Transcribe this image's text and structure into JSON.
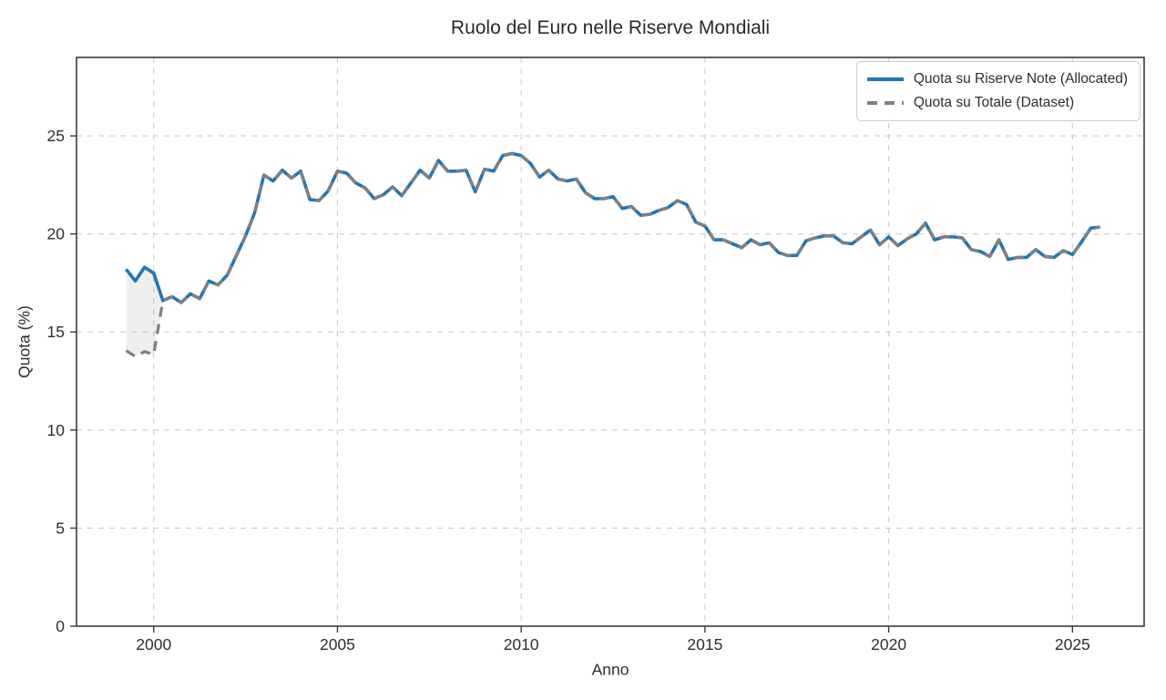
{
  "figure": {
    "title": "Ruolo del Euro nelle Riserve Mondiali"
  },
  "chart_data": {
    "type": "line",
    "title": "Ruolo del Euro nelle Riserve Mondiali",
    "xlabel": "Anno",
    "ylabel": "Quota (%)",
    "xlim": [
      1997.9,
      2026.95
    ],
    "ylim": [
      0,
      29
    ],
    "x_ticks": [
      2000,
      2005,
      2010,
      2015,
      2020,
      2025
    ],
    "y_ticks": [
      0,
      5,
      10,
      15,
      20,
      25
    ],
    "grid": true,
    "grid_color": "#cdcdcd",
    "spine_color": "#3b3b3b",
    "legend_position": "upper right",
    "x_start": 1999.25,
    "x_step": 0.25,
    "x_unit": "decimal year, quarterly (quarter-end)",
    "series": [
      {
        "name": "Quota su Riserve Note (Allocated)",
        "color": "#1f77b4",
        "style": "solid",
        "line_width": 3.6,
        "values": [
          18.2,
          17.6,
          18.3,
          18.0,
          16.6,
          16.8,
          16.5,
          16.95,
          16.7,
          17.6,
          17.4,
          17.9,
          18.9,
          19.9,
          21.1,
          23.0,
          22.7,
          23.25,
          22.85,
          23.2,
          21.75,
          21.7,
          22.2,
          23.2,
          23.1,
          22.6,
          22.35,
          21.8,
          22.0,
          22.4,
          21.95,
          22.6,
          23.25,
          22.85,
          23.75,
          23.2,
          23.2,
          23.25,
          22.15,
          23.3,
          23.2,
          24.0,
          24.1,
          24.0,
          23.6,
          22.9,
          23.25,
          22.8,
          22.7,
          22.8,
          22.1,
          21.8,
          21.8,
          21.9,
          21.3,
          21.4,
          20.95,
          21.0,
          21.2,
          21.35,
          21.7,
          21.5,
          20.6,
          20.4,
          19.7,
          19.7,
          19.5,
          19.3,
          19.7,
          19.45,
          19.55,
          19.05,
          18.9,
          18.9,
          19.65,
          19.8,
          19.9,
          19.9,
          19.55,
          19.5,
          19.85,
          20.2,
          19.45,
          19.85,
          19.4,
          19.75,
          20.0,
          20.55,
          19.7,
          19.85,
          19.85,
          19.8,
          19.2,
          19.1,
          18.85,
          19.7,
          18.7,
          18.8,
          18.8,
          19.2,
          18.85,
          18.8,
          19.15,
          18.95,
          19.6,
          20.3,
          20.35
        ]
      },
      {
        "name": "Quota su Totale (Dataset)",
        "color": "#808080",
        "style": "dashed",
        "line_width": 3.2,
        "values": [
          14.05,
          13.75,
          14.0,
          13.85,
          16.6,
          16.8,
          16.5,
          16.95,
          16.7,
          17.6,
          17.4,
          17.9,
          18.9,
          19.9,
          21.1,
          23.0,
          22.7,
          23.25,
          22.85,
          23.2,
          21.75,
          21.7,
          22.2,
          23.2,
          23.1,
          22.6,
          22.35,
          21.8,
          22.0,
          22.4,
          21.95,
          22.6,
          23.25,
          22.85,
          23.75,
          23.2,
          23.2,
          23.25,
          22.15,
          23.3,
          23.2,
          24.0,
          24.1,
          24.0,
          23.6,
          22.9,
          23.25,
          22.8,
          22.7,
          22.8,
          22.1,
          21.8,
          21.8,
          21.9,
          21.3,
          21.4,
          20.95,
          21.0,
          21.2,
          21.35,
          21.7,
          21.5,
          20.6,
          20.4,
          19.7,
          19.7,
          19.5,
          19.3,
          19.7,
          19.45,
          19.55,
          19.05,
          18.9,
          18.9,
          19.65,
          19.8,
          19.9,
          19.9,
          19.55,
          19.5,
          19.85,
          20.2,
          19.45,
          19.85,
          19.4,
          19.75,
          20.0,
          20.55,
          19.7,
          19.85,
          19.85,
          19.8,
          19.2,
          19.1,
          18.85,
          19.7,
          18.7,
          18.8,
          18.8,
          19.2,
          18.85,
          18.8,
          19.15,
          18.95,
          19.6,
          20.3,
          20.35
        ]
      }
    ],
    "fill_between": {
      "from_index": 0,
      "to_index": 4,
      "color": "rgba(128,128,128,0.13)",
      "note": "shaded gap between the two series, 1999Q1-2000Q1"
    }
  }
}
